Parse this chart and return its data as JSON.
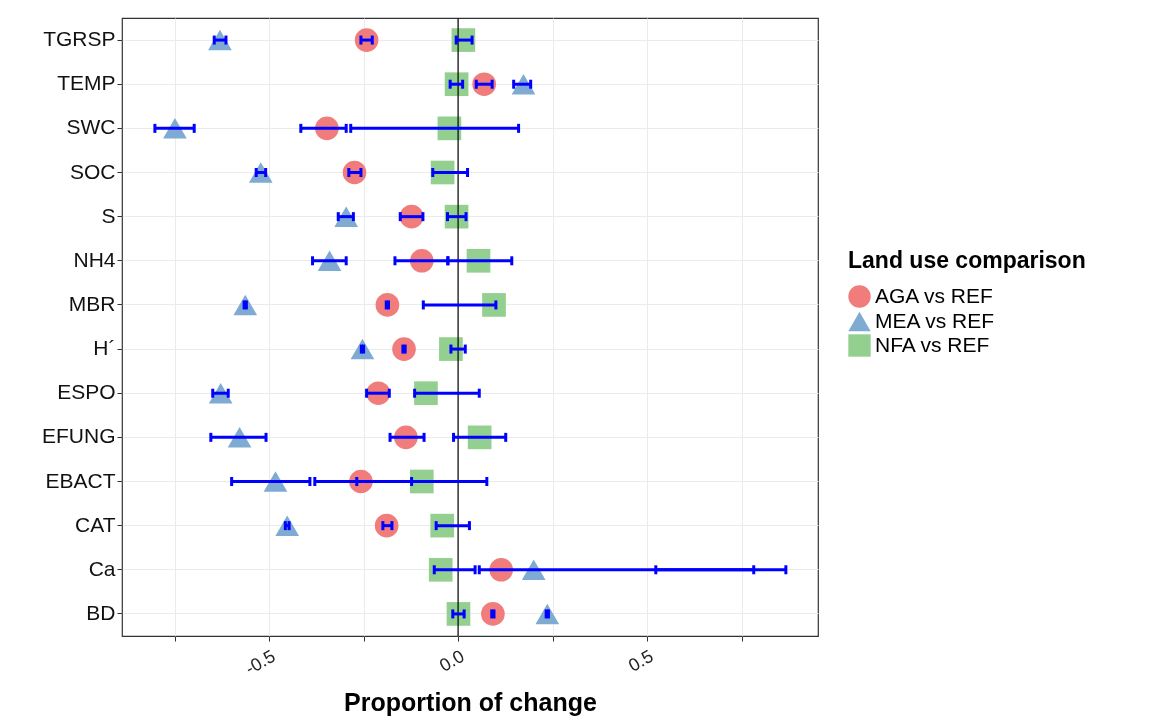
{
  "chart_data": {
    "type": "scatter",
    "orientation": "horizontal",
    "xlabel": "Proportion of change",
    "legend_title": "Land use comparison",
    "legend": "right",
    "grid": true,
    "categories": [
      "TGRSP",
      "TEMP",
      "SWC",
      "SOC",
      "S",
      "NH4",
      "MBR",
      "H´",
      "ESPO",
      "EFUNG",
      "EBACT",
      "CAT",
      "Ca",
      "BD"
    ],
    "xlim": [
      -0.889,
      0.952
    ],
    "xticks": [
      {
        "value": -0.75,
        "label": null
      },
      -0.5,
      {
        "value": -0.25,
        "label": null
      },
      {
        "value": 0,
        "label": "0.0"
      },
      {
        "value": 0.25,
        "label": null
      },
      0.5,
      {
        "value": 0.75,
        "label": null
      }
    ],
    "ref_lines": [
      {
        "axis": "x",
        "value": 0,
        "color": "#000000"
      }
    ],
    "series": [
      {
        "name": "AGA vs REF",
        "color": "#f07c7c",
        "marker": "circle",
        "values": [
          -0.242,
          0.069,
          -0.347,
          -0.274,
          -0.123,
          -0.096,
          -0.187,
          -0.143,
          -0.211,
          -0.138,
          -0.257,
          -0.189,
          0.114,
          0.092
        ],
        "errors": [
          [
            -0.257,
            -0.227
          ],
          [
            0.048,
            0.09
          ],
          [
            -0.416,
            -0.296
          ],
          [
            -0.289,
            -0.257
          ],
          [
            -0.153,
            -0.093
          ],
          [
            -0.167,
            -0.027
          ],
          0.003,
          0.003,
          [
            -0.242,
            -0.182
          ],
          [
            -0.18,
            -0.09
          ],
          [
            -0.379,
            -0.123
          ],
          [
            -0.199,
            -0.175
          ],
          [
            0.056,
            0.782
          ],
          0.003
        ]
      },
      {
        "name": "MEA vs REF",
        "color": "#7faad2",
        "marker": "triangle",
        "values": [
          -0.63,
          0.173,
          -0.749,
          -0.522,
          -0.296,
          -0.34,
          -0.563,
          -0.253,
          -0.628,
          -0.578,
          -0.483,
          -0.452,
          0.2,
          0.236
        ],
        "errors": [
          [
            -0.645,
            -0.614
          ],
          [
            0.147,
            0.192
          ],
          [
            -0.802,
            -0.698
          ],
          [
            -0.534,
            -0.509
          ],
          [
            -0.317,
            -0.277
          ],
          [
            -0.385,
            -0.296
          ],
          0.003,
          0.003,
          [
            -0.649,
            -0.608
          ],
          [
            -0.654,
            -0.508
          ],
          [
            -0.599,
            -0.392
          ],
          0.005,
          [
            0.523,
            0.867
          ],
          0.003
        ]
      },
      {
        "name": "NFA vs REF",
        "color": "#93cf8e",
        "marker": "square",
        "values": [
          0.014,
          -0.004,
          -0.023,
          -0.041,
          -0.004,
          0.054,
          0.095,
          -0.019,
          -0.085,
          0.057,
          -0.096,
          -0.042,
          -0.046,
          0.001
        ],
        "errors": [
          [
            -0.005,
            0.037
          ],
          [
            -0.021,
            0.012
          ],
          [
            -0.284,
            0.16
          ],
          [
            -0.067,
            0.025
          ],
          [
            -0.028,
            0.021
          ],
          [
            -0.027,
            0.142
          ],
          [
            -0.092,
            0.1
          ],
          [
            -0.019,
            0.019
          ],
          [
            -0.115,
            0.056
          ],
          [
            -0.012,
            0.126
          ],
          [
            -0.268,
            0.076
          ],
          [
            -0.058,
            0.03
          ],
          [
            -0.063,
            0.045
          ],
          [
            -0.014,
            0.016
          ]
        ]
      }
    ]
  }
}
